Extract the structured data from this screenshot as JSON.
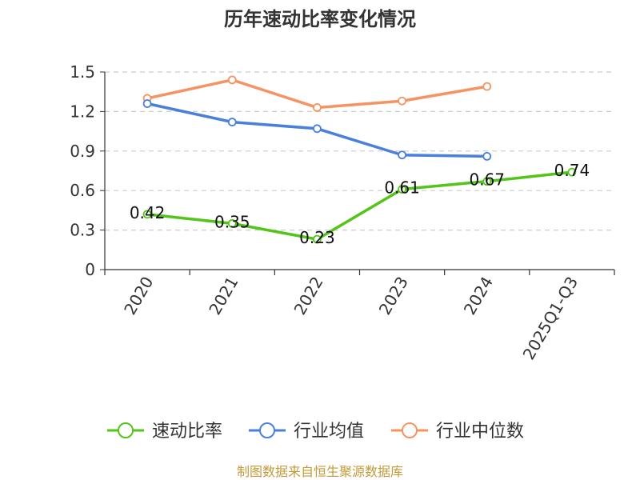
{
  "chart_data": {
    "type": "line",
    "title": "历年速动比率变化情况",
    "categories": [
      "2020",
      "2021",
      "2022",
      "2023",
      "2024",
      "2025Q1-Q3"
    ],
    "ylim": [
      0,
      1.5
    ],
    "yticks": [
      "0",
      "0.3",
      "0.6",
      "0.9",
      "1.2",
      "1.5"
    ],
    "grid": true,
    "legend_position": "bottom",
    "series": [
      {
        "name": "速动比率",
        "color": "#52c41a",
        "values": [
          0.42,
          0.35,
          0.23,
          0.61,
          0.67,
          0.74
        ],
        "labels": [
          "0.42",
          "0.35",
          "0.23",
          "0.61",
          "0.67",
          "0.74"
        ]
      },
      {
        "name": "行业均值",
        "color": "#4a7fdb",
        "values": [
          1.26,
          1.12,
          1.07,
          0.87,
          0.86,
          null
        ]
      },
      {
        "name": "行业中位数",
        "color": "#f59362",
        "values": [
          1.3,
          1.44,
          1.23,
          1.28,
          1.39,
          null
        ]
      }
    ]
  },
  "source_text": "制图数据来自恒生聚源数据库",
  "colors": {
    "source": "#c49a3a",
    "grid": "#cccccc",
    "axis": "#333333"
  }
}
